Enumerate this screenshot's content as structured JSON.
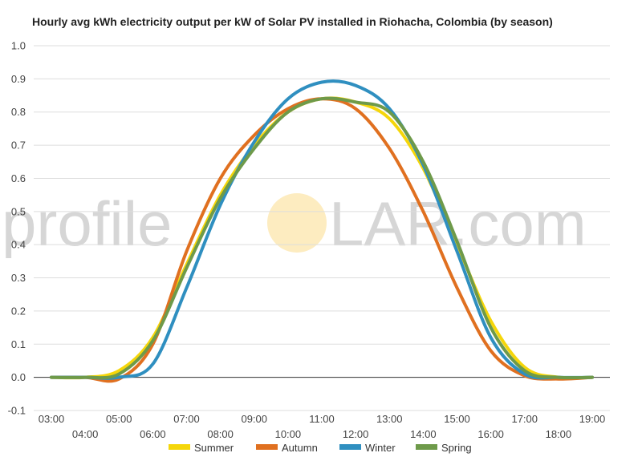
{
  "chart_data": {
    "type": "line",
    "title": "Hourly avg kWh electricity output per kW of Solar PV installed in Riohacha, Colombia (by season)",
    "xlabel": "",
    "ylabel": "",
    "x": [
      "03:00",
      "04:00",
      "05:00",
      "06:00",
      "07:00",
      "08:00",
      "09:00",
      "10:00",
      "11:00",
      "12:00",
      "13:00",
      "14:00",
      "15:00",
      "16:00",
      "17:00",
      "18:00",
      "19:00"
    ],
    "ylim": [
      -0.1,
      1.0
    ],
    "yticks": [
      -0.1,
      0.0,
      0.1,
      0.2,
      0.3,
      0.4,
      0.5,
      0.6,
      0.7,
      0.8,
      0.9,
      1.0
    ],
    "grid": true,
    "legend": "bottom",
    "series": [
      {
        "name": "Summer",
        "color": "#f5d60a",
        "values": [
          0,
          0,
          0.02,
          0.12,
          0.34,
          0.55,
          0.7,
          0.8,
          0.84,
          0.83,
          0.78,
          0.63,
          0.4,
          0.17,
          0.03,
          0,
          0
        ]
      },
      {
        "name": "Autumn",
        "color": "#e07020",
        "values": [
          0,
          0,
          -0.005,
          0.1,
          0.38,
          0.6,
          0.73,
          0.81,
          0.84,
          0.81,
          0.69,
          0.5,
          0.27,
          0.08,
          0.005,
          -0.005,
          0
        ]
      },
      {
        "name": "Winter",
        "color": "#2f8fc0",
        "values": [
          0,
          0,
          0,
          0.04,
          0.27,
          0.52,
          0.71,
          0.84,
          0.89,
          0.88,
          0.81,
          0.64,
          0.38,
          0.12,
          0.01,
          0,
          0
        ]
      },
      {
        "name": "Spring",
        "color": "#6e9a4a",
        "values": [
          0,
          0,
          0.01,
          0.11,
          0.33,
          0.54,
          0.69,
          0.8,
          0.84,
          0.83,
          0.8,
          0.65,
          0.41,
          0.15,
          0.02,
          0,
          0
        ]
      }
    ]
  },
  "watermark": {
    "pre": "profile",
    "post": "LAR.com",
    "sun_color": "#fdecc0"
  }
}
